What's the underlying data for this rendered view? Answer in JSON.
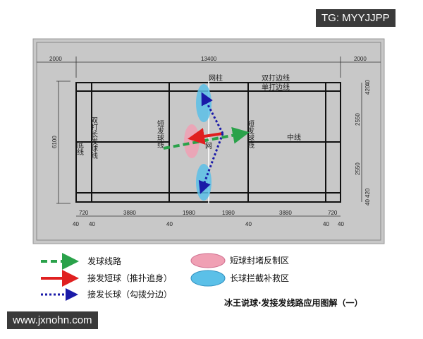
{
  "watermark_top": "TG: MYYJJPP",
  "watermark_bottom": "www.jxnohn.com",
  "dims": {
    "left": "2000",
    "total": "13400",
    "right": "2000",
    "height": "6100",
    "right_side": [
      "40",
      "420",
      "2550",
      "2550",
      "420",
      "40"
    ],
    "bottom": [
      "720",
      "3880",
      "1980",
      "1980",
      "3880",
      "720"
    ],
    "gap": "40"
  },
  "labels": {
    "net_post": "网柱",
    "doubles_side": "双打边线",
    "singles_side": "单打边线",
    "baseline": "底线",
    "doubles_long_service": "双打长发球线",
    "short_service": "短发球线",
    "net": "网",
    "center": "中线"
  },
  "legend": [
    {
      "label": "发球线路",
      "color": "#2aa24a",
      "style": "dashed-arrow"
    },
    {
      "label": "接发短球（推扑追身）",
      "color": "#e02020",
      "style": "solid-arrow"
    },
    {
      "label": "接发长球（勾拨分边）",
      "color": "#1a1aa8",
      "style": "dotted-arrow"
    },
    {
      "label": "短球封堵反制区",
      "color": "#f0a0b4",
      "style": "ellipse"
    },
    {
      "label": "长球拦截补救区",
      "color": "#5bc0e8",
      "style": "ellipse"
    }
  ],
  "caption": "冰王说球·发接发线路应用图解（一）"
}
